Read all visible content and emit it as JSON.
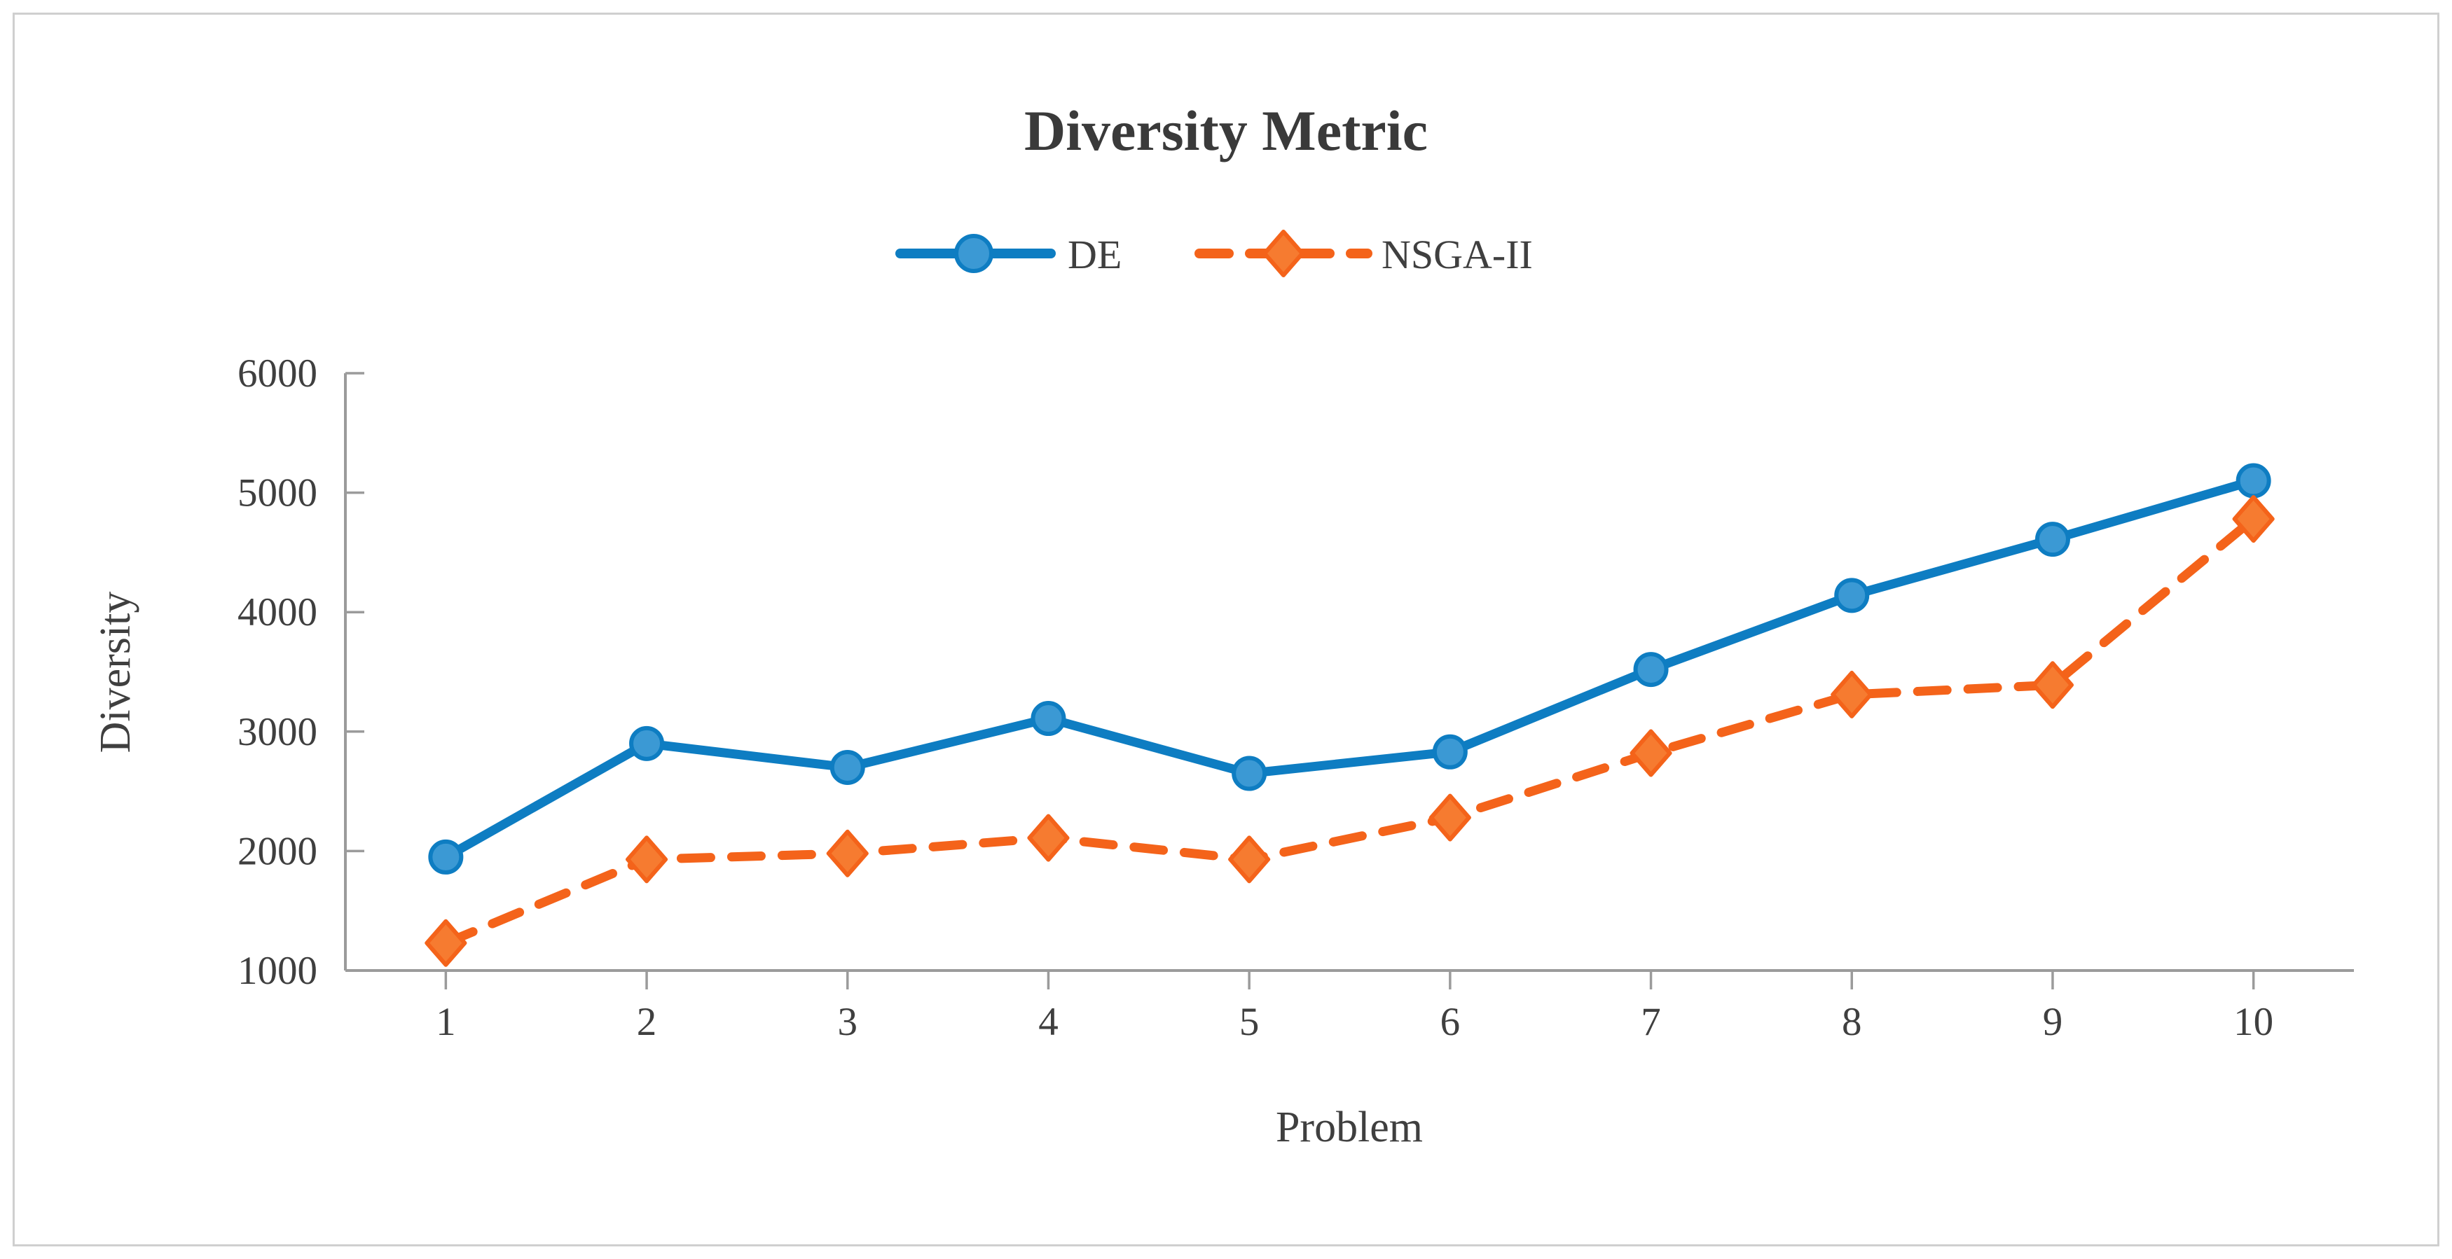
{
  "title": "Diversity Metric",
  "legend": {
    "position": "top",
    "items": [
      {
        "label": "DE"
      },
      {
        "label": "NSGA-II"
      }
    ]
  },
  "chart_data": {
    "type": "line",
    "title": "Diversity Metric",
    "xlabel": "Problem",
    "ylabel": "Diversity",
    "categories": [
      1,
      2,
      3,
      4,
      5,
      6,
      7,
      8,
      9,
      10
    ],
    "series": [
      {
        "name": "DE",
        "values": [
          1950,
          2900,
          2700,
          3110,
          2650,
          2830,
          3520,
          4140,
          4610,
          5100
        ],
        "color": "#0e7dc2",
        "marker_fill": "#3b99d4",
        "marker": "circle",
        "line_style": "solid"
      },
      {
        "name": "NSGA-II",
        "values": [
          1230,
          1930,
          1980,
          2110,
          1930,
          2280,
          2820,
          3310,
          3390,
          4780
        ],
        "color": "#f4631a",
        "marker_fill": "#f67b30",
        "marker": "diamond",
        "line_style": "dashed"
      }
    ],
    "ylim": [
      1000,
      6000
    ],
    "yticks": [
      1000,
      2000,
      3000,
      4000,
      5000,
      6000
    ],
    "grid": false,
    "legend_position": "top",
    "axis_color": "#9b9b9b",
    "text_color": "#3f3f3f"
  }
}
